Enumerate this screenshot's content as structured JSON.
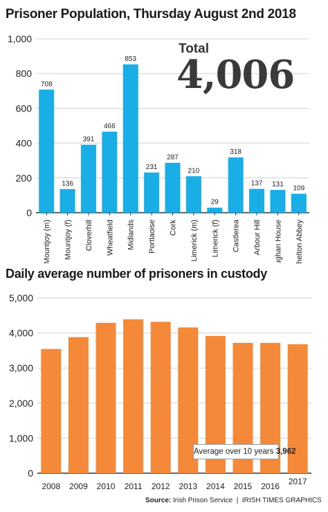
{
  "chart_data": [
    {
      "type": "bar",
      "title": "Prisoner Population, Thursday August 2nd 2018",
      "categories": [
        "Mountjoy (m)",
        "Mountjoy (f)",
        "Cloverhill",
        "Wheatfield",
        "Midlands",
        "Portlaoise",
        "Cork",
        "Limerick (m)",
        "Limerick (f)",
        "Castlerea",
        "Arbour Hill",
        "Loughan House",
        "Shelton Abbey"
      ],
      "values": [
        708,
        136,
        391,
        466,
        853,
        231,
        287,
        210,
        29,
        318,
        137,
        131,
        109
      ],
      "yticks": [
        "0",
        "200",
        "400",
        "600",
        "800",
        "1,000"
      ],
      "ylim": [
        0,
        1000
      ],
      "color": "#1aaee6",
      "total_label": "Total",
      "total_value": "4,006"
    },
    {
      "type": "bar",
      "title": "Daily average number of prisoners in custody",
      "categories": [
        "2008",
        "2009",
        "2010",
        "2011",
        "2012",
        "2013",
        "2014",
        "2015",
        "2016",
        "2017"
      ],
      "values": [
        3544,
        3881,
        4290,
        4390,
        4318,
        4158,
        3915,
        3718,
        3718,
        3680
      ],
      "yticks": [
        "0",
        "1,000",
        "2,000",
        "3,000",
        "4,000",
        "5,000"
      ],
      "ylim": [
        0,
        5000
      ],
      "color": "#f5893a",
      "annotation_text": "Average over 10 years",
      "annotation_value": "3,962"
    }
  ],
  "source": {
    "label": "Source:",
    "text": "Irish Prison Service",
    "credit": "IRISH TIMES GRAPHICS"
  }
}
